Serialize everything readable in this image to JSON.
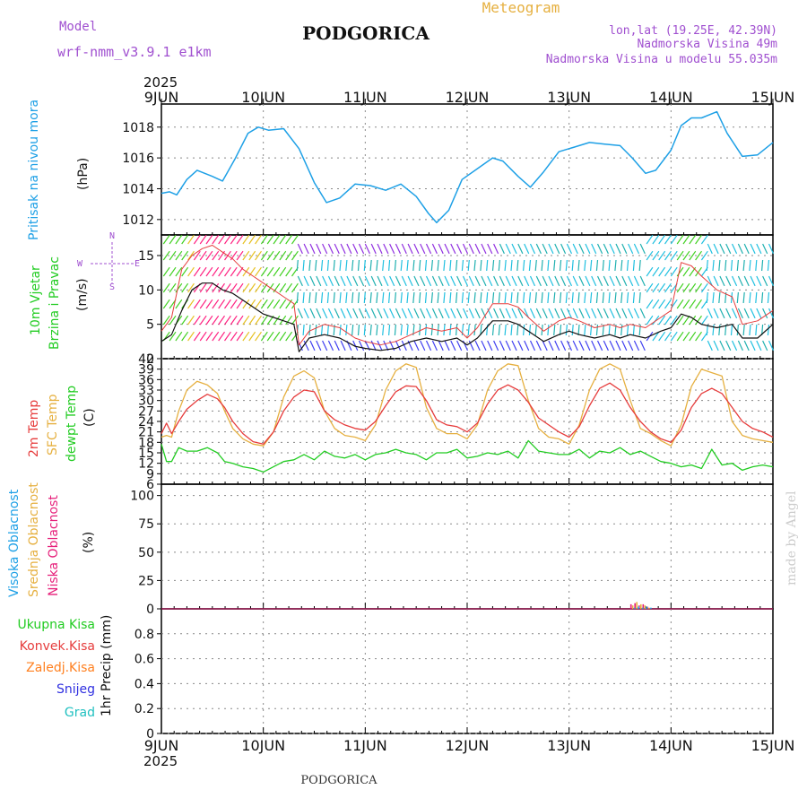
{
  "header": {
    "model_label": "Model",
    "model_name": "wrf-nmm_v3.9.1  e1km",
    "station": "PODGORICA",
    "meteogram_label": "Meteogram",
    "lonlat": "lon,lat (19.25E, 42.39N)",
    "altitude": "Nadmorska Visina 49m",
    "model_altitude": "Nadmorska Visina u modelu 55.035m",
    "year_top": "2025",
    "year_bottom": "2025",
    "footer_station": "PODGORICA",
    "credit": "made by Angel"
  },
  "colors": {
    "pressure": "#1ea0e6",
    "temp2m": "#e63c3c",
    "sfc_temp": "#e6b040",
    "dewpoint": "#22cc22",
    "wind_speed": "#111111",
    "gust": "#e63c3c",
    "model_purple": "#a050d0",
    "total_precip": "#22cc22",
    "conv_precip": "#e63c3c",
    "frozen_precip": "#ff8020",
    "snow": "#3030e0",
    "hail": "#20c0c0",
    "cloud_high": "#1ea0e6",
    "cloud_mid": "#e6b040",
    "cloud_low": "#e6207a",
    "credit": "#cccccc"
  },
  "time_axis": {
    "labels": [
      "9JUN",
      "10JUN",
      "11JUN",
      "12JUN",
      "13JUN",
      "14JUN",
      "15JUN"
    ]
  },
  "panels": {
    "pressure": {
      "label": "Pritisak na nivou mora",
      "unit": "(hPa)"
    },
    "wind": {
      "label1": "10m Vjetar",
      "label2": "Brzina i Pravac",
      "unit": "(m/s)",
      "compass_n": "N",
      "compass_w": "W",
      "compass_e": "E",
      "compass_s": "S"
    },
    "temp": {
      "label1": "2m Temp",
      "label2": "SFC Temp",
      "label3": "dewpt Temp",
      "unit": "(C)"
    },
    "cloud": {
      "label1": "Visoka Oblacnost",
      "label2": "Srednja Oblacnost",
      "label3": "Niska Oblacnost",
      "unit": "(%)"
    },
    "precip": {
      "label1": "Ukupna Kisa",
      "label2": "Konvek.Kisa",
      "label3": "Zaledj.Kisa",
      "label4": "Snijeg",
      "label5": "Grad",
      "axis_label": "1hr Precip (mm)"
    }
  },
  "chart_data": [
    {
      "type": "line",
      "title": "Pritisak na nivou mora",
      "ylabel": "(hPa)",
      "ylim": [
        1011,
        1019.5
      ],
      "yticks": [
        1012,
        1014,
        1016,
        1018
      ],
      "grid": true,
      "x_days": [
        0,
        0.08,
        0.15,
        0.25,
        0.35,
        0.5,
        0.6,
        0.72,
        0.85,
        0.95,
        1.05,
        1.2,
        1.35,
        1.5,
        1.62,
        1.75,
        1.9,
        2.05,
        2.2,
        2.35,
        2.5,
        2.62,
        2.7,
        2.82,
        2.95,
        3.1,
        3.25,
        3.35,
        3.5,
        3.62,
        3.75,
        3.9,
        4.05,
        4.2,
        4.35,
        4.5,
        4.62,
        4.75,
        4.85,
        5.0,
        5.1,
        5.2,
        5.3,
        5.45,
        5.55,
        5.7,
        5.85,
        6.0
      ],
      "series": [
        {
          "values": [
            1013.7,
            1013.8,
            1013.6,
            1014.6,
            1015.2,
            1014.8,
            1014.5,
            1015.9,
            1017.6,
            1018.0,
            1017.8,
            1017.9,
            1016.6,
            1014.4,
            1013.1,
            1013.4,
            1014.3,
            1014.2,
            1013.9,
            1014.3,
            1013.5,
            1012.4,
            1011.8,
            1012.6,
            1014.6,
            1015.3,
            1016.0,
            1015.8,
            1014.8,
            1014.1,
            1015.1,
            1016.4,
            1016.7,
            1017.0,
            1016.9,
            1016.8,
            1016.0,
            1015.0,
            1015.2,
            1016.5,
            1018.1,
            1018.6,
            1018.6,
            1019.0,
            1017.6,
            1016.1,
            1016.2,
            1017.0
          ]
        }
      ]
    },
    {
      "type": "line",
      "title": "10m Vjetar Brzina i Pravac",
      "ylabel": "(m/s)",
      "ylim": [
        0,
        18
      ],
      "yticks": [
        0,
        5,
        10,
        15
      ],
      "grid": true,
      "x_days": [
        0,
        0.1,
        0.2,
        0.3,
        0.4,
        0.5,
        0.6,
        0.7,
        0.8,
        0.9,
        1.0,
        1.1,
        1.2,
        1.3,
        1.35,
        1.45,
        1.6,
        1.75,
        1.9,
        2.0,
        2.15,
        2.3,
        2.45,
        2.6,
        2.75,
        2.9,
        3.0,
        3.1,
        3.25,
        3.4,
        3.5,
        3.6,
        3.75,
        3.9,
        4.0,
        4.1,
        4.25,
        4.4,
        4.5,
        4.6,
        4.75,
        4.9,
        5.0,
        5.1,
        5.2,
        5.3,
        5.45,
        5.6,
        5.7,
        5.85,
        6.0
      ],
      "series": [
        {
          "name": "speed",
          "values": [
            2.5,
            3.5,
            7,
            10,
            11,
            11,
            10,
            9.5,
            8.5,
            7.5,
            6.5,
            6,
            5.5,
            5,
            1,
            3,
            3.5,
            3,
            1.8,
            1.5,
            1.2,
            1.5,
            2.5,
            3,
            2.5,
            3,
            2,
            3,
            5.5,
            5.5,
            5,
            4,
            2.5,
            3.5,
            4,
            3.5,
            3,
            3.5,
            3,
            3.5,
            3,
            4,
            4.5,
            6.5,
            6,
            5,
            4.5,
            5,
            3,
            3,
            5
          ]
        },
        {
          "name": "gust",
          "values": [
            4,
            6,
            13,
            15,
            16,
            16.5,
            15.5,
            14.5,
            13,
            12,
            11,
            10,
            9,
            8,
            2,
            4,
            5,
            4.5,
            3,
            2.5,
            2,
            2.5,
            3.5,
            4.5,
            4,
            4.5,
            3,
            4.5,
            8,
            8,
            7.5,
            6,
            4,
            5.5,
            6,
            5.5,
            4.5,
            5,
            4.5,
            5,
            4.5,
            6,
            7,
            14,
            13.5,
            12,
            10,
            9,
            5,
            5.5,
            7
          ]
        }
      ]
    },
    {
      "type": "line",
      "title": "2m Temp / SFC Temp / dewpt Temp",
      "ylabel": "(C)",
      "ylim": [
        6,
        42
      ],
      "yticks": [
        6,
        9,
        12,
        15,
        18,
        21,
        24,
        27,
        30,
        33,
        36,
        39,
        42
      ],
      "grid": true,
      "x_days": [
        0,
        0.05,
        0.1,
        0.17,
        0.25,
        0.35,
        0.45,
        0.55,
        0.62,
        0.7,
        0.8,
        0.9,
        1.0,
        1.1,
        1.2,
        1.3,
        1.4,
        1.5,
        1.6,
        1.7,
        1.8,
        1.9,
        2.0,
        2.1,
        2.2,
        2.3,
        2.4,
        2.5,
        2.6,
        2.7,
        2.8,
        2.9,
        3.0,
        3.1,
        3.2,
        3.3,
        3.4,
        3.5,
        3.6,
        3.7,
        3.8,
        3.9,
        4.0,
        4.1,
        4.2,
        4.3,
        4.4,
        4.5,
        4.6,
        4.7,
        4.8,
        4.9,
        5.0,
        5.1,
        5.2,
        5.3,
        5.4,
        5.5,
        5.6,
        5.7,
        5.8,
        5.9,
        6.0
      ],
      "series": [
        {
          "name": "2m Temp",
          "values": [
            20.5,
            23.5,
            20.5,
            24,
            27.5,
            30,
            31.8,
            30.5,
            28,
            24,
            20.5,
            18.2,
            17.5,
            21,
            27,
            31,
            33,
            32.5,
            27,
            24.5,
            23,
            22,
            21.5,
            24,
            28.5,
            32.5,
            34.2,
            34,
            30,
            24.5,
            23,
            22.5,
            21,
            23.5,
            29,
            33,
            34.5,
            33,
            29.5,
            25,
            23,
            21,
            19.5,
            22.5,
            28.5,
            33.5,
            35,
            33,
            28,
            24,
            21,
            19,
            18,
            21.5,
            28,
            32,
            33.5,
            32,
            28,
            24,
            22,
            21,
            19.5
          ]
        },
        {
          "name": "SFC Temp",
          "values": [
            19.5,
            20,
            19.5,
            27,
            33,
            35.5,
            34.5,
            32,
            27,
            22,
            19,
            17.5,
            17,
            21,
            31,
            37,
            38.5,
            36.5,
            27,
            22,
            20,
            19.5,
            18.5,
            23,
            33,
            38.5,
            40.5,
            39.5,
            28,
            22,
            20.5,
            20.5,
            19,
            23,
            33,
            38.5,
            40.5,
            40,
            30,
            22,
            19.5,
            19,
            17.5,
            23,
            33,
            39,
            40.5,
            39,
            30,
            22,
            20.5,
            18.5,
            17,
            23,
            34,
            39,
            38,
            37,
            24,
            20,
            19,
            18.5,
            18
          ]
        },
        {
          "name": "dewpt Temp",
          "values": [
            17.5,
            12.5,
            12.5,
            16.5,
            15.5,
            15.5,
            16.5,
            15,
            12.5,
            12,
            11,
            10.5,
            9.5,
            11,
            12.5,
            13,
            14.5,
            13,
            15.5,
            14,
            13.5,
            14.5,
            13,
            14.5,
            15,
            16,
            15,
            14.5,
            13,
            15,
            15,
            16,
            13.5,
            14,
            15,
            14.5,
            15.5,
            13.5,
            18.5,
            15.5,
            15,
            14.5,
            14.5,
            16,
            13.5,
            15.5,
            15,
            16.5,
            14.5,
            15.5,
            14,
            12.5,
            12,
            11,
            11.5,
            10.5,
            16,
            11.5,
            12,
            10,
            11,
            11.5,
            11
          ]
        }
      ]
    },
    {
      "type": "bar",
      "title": "Visoka / Srednja / Niska Oblacnost",
      "ylabel": "(%)",
      "ylim": [
        0,
        110
      ],
      "yticks": [
        0,
        25,
        50,
        75,
        100
      ],
      "grid": true,
      "x_days": [
        4.6,
        4.64,
        4.68,
        4.72,
        4.76
      ],
      "series": [
        {
          "name": "Niska Oblacnost",
          "values": [
            4,
            5,
            3,
            4,
            2
          ]
        },
        {
          "name": "Srednja Oblacnost",
          "values": [
            3,
            6,
            4,
            3,
            1
          ]
        },
        {
          "name": "Visoka Oblacnost",
          "values": [
            1,
            2,
            1,
            2,
            1
          ]
        }
      ]
    },
    {
      "type": "bar",
      "title": "1hr Precip (mm)",
      "ylabel": "1hr Precip (mm)",
      "ylim": [
        0,
        1
      ],
      "yticks": [
        0,
        0.2,
        0.4,
        0.6,
        0.8
      ],
      "grid": true,
      "series": [
        {
          "name": "Ukupna Kisa",
          "values": []
        }
      ]
    }
  ]
}
